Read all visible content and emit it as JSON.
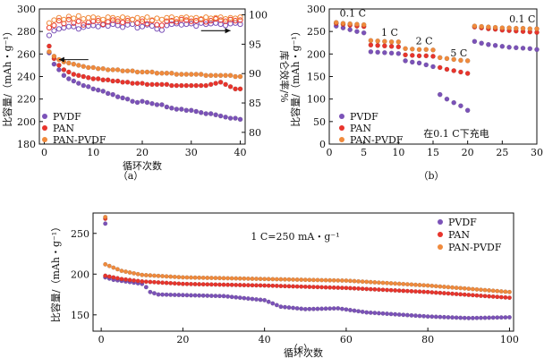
{
  "chart_data": [
    {
      "type": "scatter",
      "panel_label": "（a）",
      "xlabel": "循环次数",
      "ylabel": "比容量/（mAh・g⁻¹）",
      "y2label": "库仑效率/%",
      "xlim": [
        -1,
        41
      ],
      "ylim": [
        180,
        300
      ],
      "y2lim": [
        78,
        101
      ],
      "xticks": [
        0,
        10,
        20,
        30,
        40
      ],
      "yticks": [
        180,
        200,
        220,
        240,
        260,
        280,
        300
      ],
      "y2ticks": [
        80,
        85,
        90,
        95,
        100
      ],
      "legend_position": "bottom-left",
      "series": [
        {
          "name": "PVDF",
          "color": "#7b52b8",
          "axis": "left",
          "x": [
            1,
            2,
            3,
            4,
            5,
            6,
            7,
            8,
            9,
            10,
            11,
            12,
            13,
            14,
            15,
            16,
            17,
            18,
            19,
            20,
            21,
            22,
            23,
            24,
            25,
            26,
            27,
            28,
            29,
            30,
            31,
            32,
            33,
            34,
            35,
            36,
            37,
            38,
            39,
            40
          ],
          "values": [
            261,
            251,
            246,
            241,
            238,
            236,
            234,
            232,
            231,
            229,
            228,
            227,
            225,
            224,
            222,
            221,
            220,
            218,
            217,
            218,
            217,
            216,
            215,
            215,
            213,
            212,
            211,
            211,
            210,
            210,
            209,
            208,
            207,
            207,
            206,
            205,
            204,
            203,
            203,
            202
          ]
        },
        {
          "name": "PAN",
          "color": "#e8342c",
          "axis": "left",
          "x": [
            1,
            2,
            3,
            4,
            5,
            6,
            7,
            8,
            9,
            10,
            11,
            12,
            13,
            14,
            15,
            16,
            17,
            18,
            19,
            20,
            21,
            22,
            23,
            24,
            25,
            26,
            27,
            28,
            29,
            30,
            31,
            32,
            33,
            34,
            35,
            36,
            37,
            38,
            39,
            40
          ],
          "values": [
            267,
            256,
            250,
            246,
            244,
            242,
            241,
            240,
            239,
            238,
            238,
            237,
            237,
            236,
            236,
            235,
            235,
            234,
            234,
            234,
            233,
            233,
            233,
            233,
            233,
            232,
            232,
            232,
            232,
            232,
            232,
            232,
            232,
            233,
            234,
            235,
            233,
            231,
            229,
            229
          ]
        },
        {
          "name": "PAN-PVDF",
          "color": "#f08a3c",
          "axis": "left",
          "x": [
            1,
            2,
            3,
            4,
            5,
            6,
            7,
            8,
            9,
            10,
            11,
            12,
            13,
            14,
            15,
            16,
            17,
            18,
            19,
            20,
            21,
            22,
            23,
            24,
            25,
            26,
            27,
            28,
            29,
            30,
            31,
            32,
            33,
            34,
            35,
            36,
            37,
            38,
            39,
            40
          ],
          "values": [
            262,
            258,
            255,
            253,
            252,
            251,
            250,
            249,
            248,
            248,
            247,
            247,
            246,
            246,
            246,
            245,
            245,
            245,
            244,
            244,
            244,
            244,
            243,
            243,
            243,
            243,
            242,
            242,
            242,
            242,
            242,
            242,
            241,
            241,
            241,
            241,
            241,
            241,
            240,
            240
          ]
        },
        {
          "name": "",
          "color": "#7b52b8",
          "axis": "right",
          "x": [
            1,
            2,
            3,
            4,
            5,
            6,
            7,
            8,
            9,
            10,
            11,
            12,
            13,
            14,
            15,
            16,
            17,
            18,
            19,
            20,
            21,
            22,
            23,
            24,
            25,
            26,
            27,
            28,
            29,
            30,
            31,
            32,
            33,
            34,
            35,
            36,
            37,
            38,
            39,
            40
          ],
          "values": [
            96.5,
            97.3,
            97.6,
            97.8,
            98.0,
            98.0,
            97.6,
            97.9,
            98.1,
            98.2,
            98.0,
            98.3,
            98.1,
            98.4,
            98.2,
            97.9,
            98.3,
            98.4,
            97.8,
            98.0,
            98.3,
            98.1,
            97.6,
            97.4,
            98.2,
            98.4,
            98.5,
            98.3,
            98.4,
            98.5,
            98.1,
            98.6,
            98.4,
            98.5,
            98.6,
            98.4,
            98.2,
            98.5,
            98.6,
            98.4
          ]
        },
        {
          "name": "",
          "color": "#e8342c",
          "axis": "right",
          "x": [
            1,
            2,
            3,
            4,
            5,
            6,
            7,
            8,
            9,
            10,
            11,
            12,
            13,
            14,
            15,
            16,
            17,
            18,
            19,
            20,
            21,
            22,
            23,
            24,
            25,
            26,
            27,
            28,
            29,
            30,
            31,
            32,
            33,
            34,
            35,
            36,
            37,
            38,
            39,
            40
          ],
          "values": [
            97.8,
            98.2,
            99.0,
            98.5,
            99.2,
            98.6,
            98.9,
            98.3,
            98.7,
            98.9,
            99.0,
            98.4,
            98.8,
            99.1,
            98.9,
            98.7,
            99.0,
            99.2,
            98.6,
            98.9,
            98.5,
            99.0,
            98.3,
            98.2,
            98.9,
            99.0,
            98.8,
            99.2,
            99.1,
            98.9,
            99.0,
            99.2,
            98.8,
            99.0,
            99.3,
            99.1,
            98.9,
            99.2,
            99.0,
            99.1
          ]
        },
        {
          "name": "",
          "color": "#f08a3c",
          "axis": "right",
          "x": [
            1,
            2,
            3,
            4,
            5,
            6,
            7,
            8,
            9,
            10,
            11,
            12,
            13,
            14,
            15,
            16,
            17,
            18,
            19,
            20,
            21,
            22,
            23,
            24,
            25,
            26,
            27,
            28,
            29,
            30,
            31,
            32,
            33,
            34,
            35,
            36,
            37,
            38,
            39,
            40
          ],
          "values": [
            98.6,
            99.1,
            99.5,
            99.2,
            99.7,
            99.4,
            99.8,
            99.3,
            99.5,
            99.6,
            99.4,
            99.2,
            99.6,
            99.5,
            99.3,
            99.6,
            99.4,
            99.2,
            99.5,
            99.3,
            99.6,
            99.1,
            99.4,
            99.2,
            99.5,
            99.6,
            99.3,
            99.5,
            99.6,
            99.4,
            99.5,
            99.3,
            99.6,
            99.4,
            99.5,
            99.6,
            99.3,
            99.5,
            99.4,
            99.6
          ]
        }
      ],
      "annotations": [
        {
          "type": "arrow",
          "direction": "left",
          "x_from": 9,
          "x_to": 3,
          "y": 255,
          "axis": "left"
        },
        {
          "type": "arrow",
          "direction": "right",
          "x_from": 32,
          "x_to": 38,
          "y": 97.3,
          "axis": "right"
        }
      ]
    },
    {
      "type": "scatter",
      "panel_label": "（b）",
      "xlabel": "",
      "ylabel": "比容量/（mAh・g⁻¹）",
      "xlim": [
        0,
        30
      ],
      "ylim": [
        0,
        300
      ],
      "xticks": [
        0,
        5,
        10,
        15,
        20,
        25,
        30
      ],
      "yticks": [
        0,
        50,
        100,
        150,
        200,
        250,
        300
      ],
      "legend_position": "bottom-left",
      "note": "在0.1 C下充电",
      "rate_labels": [
        {
          "text": "0.1 C",
          "x": 1.5,
          "y": 283
        },
        {
          "text": "1 C",
          "x": 7.5,
          "y": 240
        },
        {
          "text": "2 C",
          "x": 12.5,
          "y": 222
        },
        {
          "text": "5 C",
          "x": 17.5,
          "y": 195
        },
        {
          "text": "0.1 C",
          "x": 26,
          "y": 270
        }
      ],
      "series": [
        {
          "name": "PVDF",
          "color": "#7b52b8",
          "x": [
            1,
            2,
            3,
            4,
            5,
            6,
            7,
            8,
            9,
            10,
            11,
            12,
            13,
            14,
            15,
            16,
            17,
            18,
            19,
            20,
            21,
            22,
            23,
            24,
            25,
            26,
            27,
            28,
            29,
            30
          ],
          "values": [
            262,
            258,
            254,
            250,
            247,
            205,
            204,
            203,
            202,
            201,
            185,
            182,
            180,
            176,
            172,
            110,
            100,
            92,
            85,
            75,
            228,
            224,
            221,
            219,
            217,
            215,
            214,
            213,
            212,
            210
          ]
        },
        {
          "name": "PAN",
          "color": "#e8342c",
          "x": [
            1,
            2,
            3,
            4,
            5,
            6,
            7,
            8,
            9,
            10,
            11,
            12,
            13,
            14,
            15,
            16,
            17,
            18,
            19,
            20,
            21,
            22,
            23,
            24,
            25,
            26,
            27,
            28,
            29,
            30
          ],
          "values": [
            268,
            266,
            264,
            262,
            261,
            220,
            219,
            218,
            217,
            216,
            198,
            197,
            196,
            196,
            195,
            170,
            166,
            163,
            160,
            157,
            260,
            258,
            256,
            255,
            253,
            252,
            251,
            250,
            249,
            248
          ]
        },
        {
          "name": "PAN-PVDF",
          "color": "#f08a3c",
          "x": [
            1,
            2,
            3,
            4,
            5,
            6,
            7,
            8,
            9,
            10,
            11,
            12,
            13,
            14,
            15,
            16,
            17,
            18,
            19,
            20,
            21,
            22,
            23,
            24,
            25,
            26,
            27,
            28,
            29,
            30
          ],
          "values": [
            270,
            268,
            267,
            266,
            265,
            230,
            229,
            228,
            227,
            227,
            212,
            211,
            210,
            210,
            209,
            192,
            190,
            188,
            186,
            185,
            262,
            261,
            260,
            259,
            258,
            258,
            257,
            257,
            256,
            256
          ]
        }
      ]
    },
    {
      "type": "scatter",
      "panel_label": "（c）",
      "xlabel": "循环次数",
      "ylabel": "比容量/（mAh・g⁻¹）",
      "xlim": [
        -2,
        101
      ],
      "ylim": [
        130,
        275
      ],
      "xticks": [
        0,
        20,
        40,
        60,
        80,
        100
      ],
      "yticks": [
        150,
        200,
        250
      ],
      "legend_position": "top-right",
      "note": "1 C=250 mA・g⁻¹",
      "series": [
        {
          "name": "PVDF",
          "color": "#7b52b8",
          "first_x": 1,
          "first_value": 262,
          "start": 1,
          "step": 1,
          "anchors": [
            [
              1,
              196
            ],
            [
              3,
              193
            ],
            [
              6,
              191
            ],
            [
              10,
              188
            ],
            [
              11,
              184
            ],
            [
              12,
              178
            ],
            [
              14,
              175
            ],
            [
              30,
              173
            ],
            [
              40,
              168
            ],
            [
              44,
              160
            ],
            [
              50,
              157
            ],
            [
              58,
              158
            ],
            [
              65,
              153
            ],
            [
              80,
              148
            ],
            [
              90,
              146
            ],
            [
              100,
              147
            ]
          ]
        },
        {
          "name": "PAN",
          "color": "#e8342c",
          "first_x": 1,
          "first_value": 268,
          "start": 1,
          "step": 1,
          "anchors": [
            [
              1,
              198
            ],
            [
              5,
              194
            ],
            [
              10,
              191
            ],
            [
              20,
              188
            ],
            [
              40,
              186
            ],
            [
              60,
              183
            ],
            [
              80,
              178
            ],
            [
              100,
              171
            ]
          ]
        },
        {
          "name": "PAN-PVDF",
          "color": "#f08a3c",
          "first_x": 1,
          "first_value": 270,
          "start": 1,
          "step": 1,
          "anchors": [
            [
              1,
              212
            ],
            [
              5,
              204
            ],
            [
              10,
              199
            ],
            [
              20,
              196
            ],
            [
              40,
              194
            ],
            [
              60,
              192
            ],
            [
              80,
              186
            ],
            [
              100,
              178
            ]
          ]
        }
      ]
    }
  ]
}
